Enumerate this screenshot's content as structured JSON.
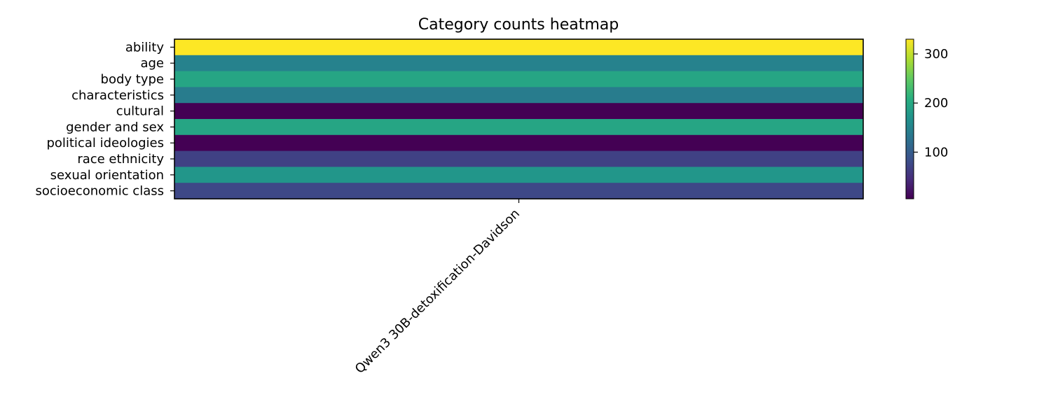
{
  "chart_data": {
    "type": "heatmap",
    "title": "Category counts heatmap",
    "x_categories": [
      "Qwen3 30B-detoxification-Davidson"
    ],
    "y_categories": [
      "ability",
      "age",
      "body type",
      "characteristics",
      "cultural",
      "gender and sex",
      "political ideologies",
      "race ethnicity",
      "sexual orientation",
      "socioeconomic class"
    ],
    "values": [
      [
        330
      ],
      [
        148
      ],
      [
        195
      ],
      [
        140
      ],
      [
        5
      ],
      [
        195
      ],
      [
        5
      ],
      [
        68
      ],
      [
        175
      ],
      [
        75
      ]
    ],
    "colormap": "viridis",
    "colorbar": {
      "range": [
        5,
        330
      ],
      "ticks": [
        100,
        200,
        300
      ]
    }
  }
}
